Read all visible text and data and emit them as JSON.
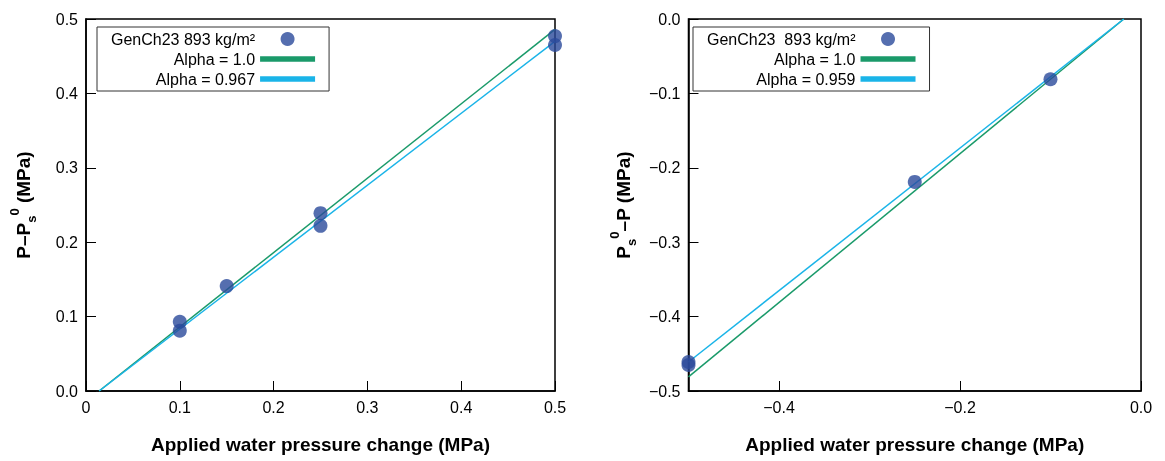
{
  "chart_data": [
    {
      "type": "scatter",
      "xlabel": "Applied water pressure change (MPa)",
      "ylabel": "P–P$_{s}$$^{0}$ (MPa)",
      "xlim": [
        0,
        0.5
      ],
      "ylim": [
        0,
        0.5
      ],
      "xticks": [
        {
          "value": 0,
          "label": "0"
        },
        0.1,
        0.2,
        0.3,
        0.4,
        0.5
      ],
      "yticks": [
        {
          "value": 0,
          "label": "0.0"
        },
        0.1,
        0.2,
        0.3,
        0.4,
        0.5
      ],
      "legend": "top left",
      "grid": false,
      "series": [
        {
          "name": "GenCh23 893 kg/m²",
          "marker": "circle",
          "color": "#2b4a9b",
          "x": [
            0.1,
            0.1,
            0.15,
            0.25,
            0.25,
            0.5,
            0.5
          ],
          "values": [
            0.093,
            0.081,
            0.141,
            0.239,
            0.222,
            0.477,
            0.465
          ]
        },
        {
          "name": "Alpha = 1.0",
          "type": "line",
          "marker": "none",
          "line_style": "solid",
          "color": "#1a9a6a",
          "x": [
            0.014,
            0.5
          ],
          "values": [
            0,
            0.486
          ]
        },
        {
          "name": "Alpha = 0.967",
          "type": "line",
          "marker": "none",
          "line_style": "solid",
          "color": "#1ab4e8",
          "x": [
            0.014,
            0.5
          ],
          "values": [
            0,
            0.47
          ]
        }
      ]
    },
    {
      "type": "scatter",
      "xlabel": "Applied water pressure change (MPa)",
      "ylabel": "P$_{s}$$^{0}$–P (MPa)",
      "xlim": [
        -0.5,
        0
      ],
      "ylim": [
        -0.5,
        0
      ],
      "xticks": [
        {
          "value": -0.4,
          "label": "−0.4"
        },
        {
          "value": -0.2,
          "label": "−0.2"
        },
        {
          "value": 0,
          "label": "0.0"
        }
      ],
      "yticks": [
        {
          "value": -0.5,
          "label": "−0.5"
        },
        {
          "value": -0.4,
          "label": "−0.4"
        },
        {
          "value": -0.3,
          "label": "−0.3"
        },
        {
          "value": -0.2,
          "label": "−0.2"
        },
        {
          "value": -0.1,
          "label": "−0.1"
        },
        {
          "value": 0,
          "label": "0.0"
        }
      ],
      "legend": "top left",
      "grid": false,
      "series": [
        {
          "name": "GenCh23  893 kg/m²",
          "marker": "circle",
          "color": "#2b4a9b",
          "x": [
            -0.5,
            -0.5,
            -0.25,
            -0.1
          ],
          "values": [
            -0.461,
            -0.465,
            -0.219,
            -0.081
          ]
        },
        {
          "name": "Alpha = 1.0",
          "type": "line",
          "marker": "none",
          "line_style": "solid",
          "color": "#1a9a6a",
          "x": [
            -0.5,
            -0.019
          ],
          "values": [
            -0.481,
            0
          ]
        },
        {
          "name": "Alpha = 0.959",
          "type": "line",
          "marker": "none",
          "line_style": "solid",
          "color": "#1ab4e8",
          "x": [
            -0.5,
            -0.019
          ],
          "values": [
            -0.461,
            0
          ]
        }
      ]
    }
  ]
}
